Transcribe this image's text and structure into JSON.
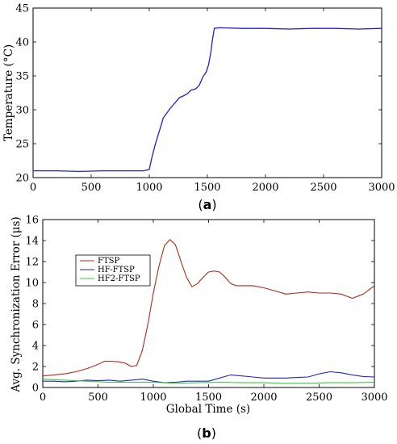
{
  "chart_data": [
    {
      "type": "line",
      "caption": "(a)",
      "caption_letter": "a",
      "xlabel": "",
      "ylabel": "Temperature (°C)",
      "xlim": [
        0,
        3000
      ],
      "ylim": [
        20,
        45
      ],
      "xticks": [
        0,
        500,
        1000,
        1500,
        2000,
        2500,
        3000
      ],
      "yticks": [
        20,
        25,
        30,
        35,
        40,
        45
      ],
      "grid": false,
      "series": [
        {
          "color": "#1f1fd6",
          "x": [
            0,
            200,
            400,
            600,
            800,
            950,
            1000,
            1020,
            1050,
            1080,
            1100,
            1120,
            1150,
            1180,
            1200,
            1230,
            1260,
            1300,
            1330,
            1360,
            1400,
            1430,
            1460,
            1490,
            1510,
            1530,
            1545,
            1560,
            1600,
            1800,
            2000,
            2200,
            2400,
            2600,
            2800,
            3000
          ],
          "y": [
            21.0,
            21.0,
            20.9,
            21.0,
            21.0,
            21.0,
            21.2,
            22.8,
            24.8,
            26.5,
            27.6,
            28.8,
            29.5,
            30.2,
            30.6,
            31.2,
            31.8,
            32.1,
            32.4,
            32.9,
            33.1,
            33.6,
            34.8,
            35.6,
            36.6,
            38.5,
            40.5,
            42.0,
            42.1,
            42.0,
            42.0,
            41.9,
            42.0,
            42.0,
            41.9,
            42.0
          ]
        }
      ]
    },
    {
      "type": "line",
      "caption": "(b)",
      "caption_letter": "b",
      "xlabel": "Global Time (s)",
      "ylabel": "Avg. Synchronization Error (μs)",
      "xlim": [
        0,
        3000
      ],
      "ylim": [
        0,
        16
      ],
      "xticks": [
        0,
        500,
        1000,
        1500,
        2000,
        2500,
        3000
      ],
      "yticks": [
        0,
        2,
        4,
        6,
        8,
        10,
        12,
        14,
        16
      ],
      "grid": false,
      "legend_position": "upper-left",
      "series": [
        {
          "name": "FTSP",
          "color": "#b22a1a",
          "x": [
            0,
            100,
            200,
            300,
            400,
            500,
            560,
            600,
            680,
            750,
            800,
            850,
            900,
            950,
            1000,
            1050,
            1100,
            1150,
            1200,
            1250,
            1300,
            1350,
            1400,
            1450,
            1500,
            1550,
            1600,
            1650,
            1700,
            1750,
            1800,
            1900,
            2000,
            2100,
            2200,
            2300,
            2400,
            2500,
            2600,
            2700,
            2800,
            2900,
            3000
          ],
          "y": [
            1.1,
            1.2,
            1.3,
            1.5,
            1.8,
            2.2,
            2.5,
            2.5,
            2.45,
            2.3,
            2.0,
            2.1,
            3.5,
            6.0,
            9.0,
            11.5,
            13.5,
            14.1,
            13.6,
            12.0,
            10.5,
            9.6,
            9.9,
            10.5,
            11.0,
            11.1,
            11.0,
            10.5,
            9.9,
            9.7,
            9.7,
            9.7,
            9.5,
            9.2,
            8.9,
            9.0,
            9.1,
            9.0,
            9.0,
            8.9,
            8.5,
            8.9,
            9.7
          ]
        },
        {
          "name": "HF-FTSP",
          "color": "#2525c8",
          "x": [
            0,
            100,
            200,
            300,
            400,
            500,
            600,
            700,
            800,
            900,
            1000,
            1100,
            1200,
            1300,
            1400,
            1500,
            1600,
            1700,
            1800,
            1900,
            2000,
            2100,
            2200,
            2300,
            2400,
            2500,
            2600,
            2700,
            2800,
            2900,
            3000
          ],
          "y": [
            0.6,
            0.6,
            0.55,
            0.6,
            0.7,
            0.65,
            0.7,
            0.6,
            0.7,
            0.8,
            0.6,
            0.45,
            0.5,
            0.6,
            0.6,
            0.6,
            0.9,
            1.2,
            1.1,
            1.0,
            0.9,
            0.9,
            0.9,
            0.95,
            1.0,
            1.3,
            1.5,
            1.4,
            1.2,
            1.05,
            1.0
          ]
        },
        {
          "name": "HF2-FTSP",
          "color": "#3ec63e",
          "x": [
            0,
            200,
            400,
            600,
            800,
            1000,
            1200,
            1400,
            1600,
            1800,
            2000,
            2200,
            2400,
            2600,
            2800,
            3000
          ],
          "y": [
            0.8,
            0.7,
            0.6,
            0.5,
            0.5,
            0.5,
            0.4,
            0.45,
            0.5,
            0.45,
            0.45,
            0.4,
            0.4,
            0.45,
            0.45,
            0.5
          ]
        }
      ]
    }
  ]
}
